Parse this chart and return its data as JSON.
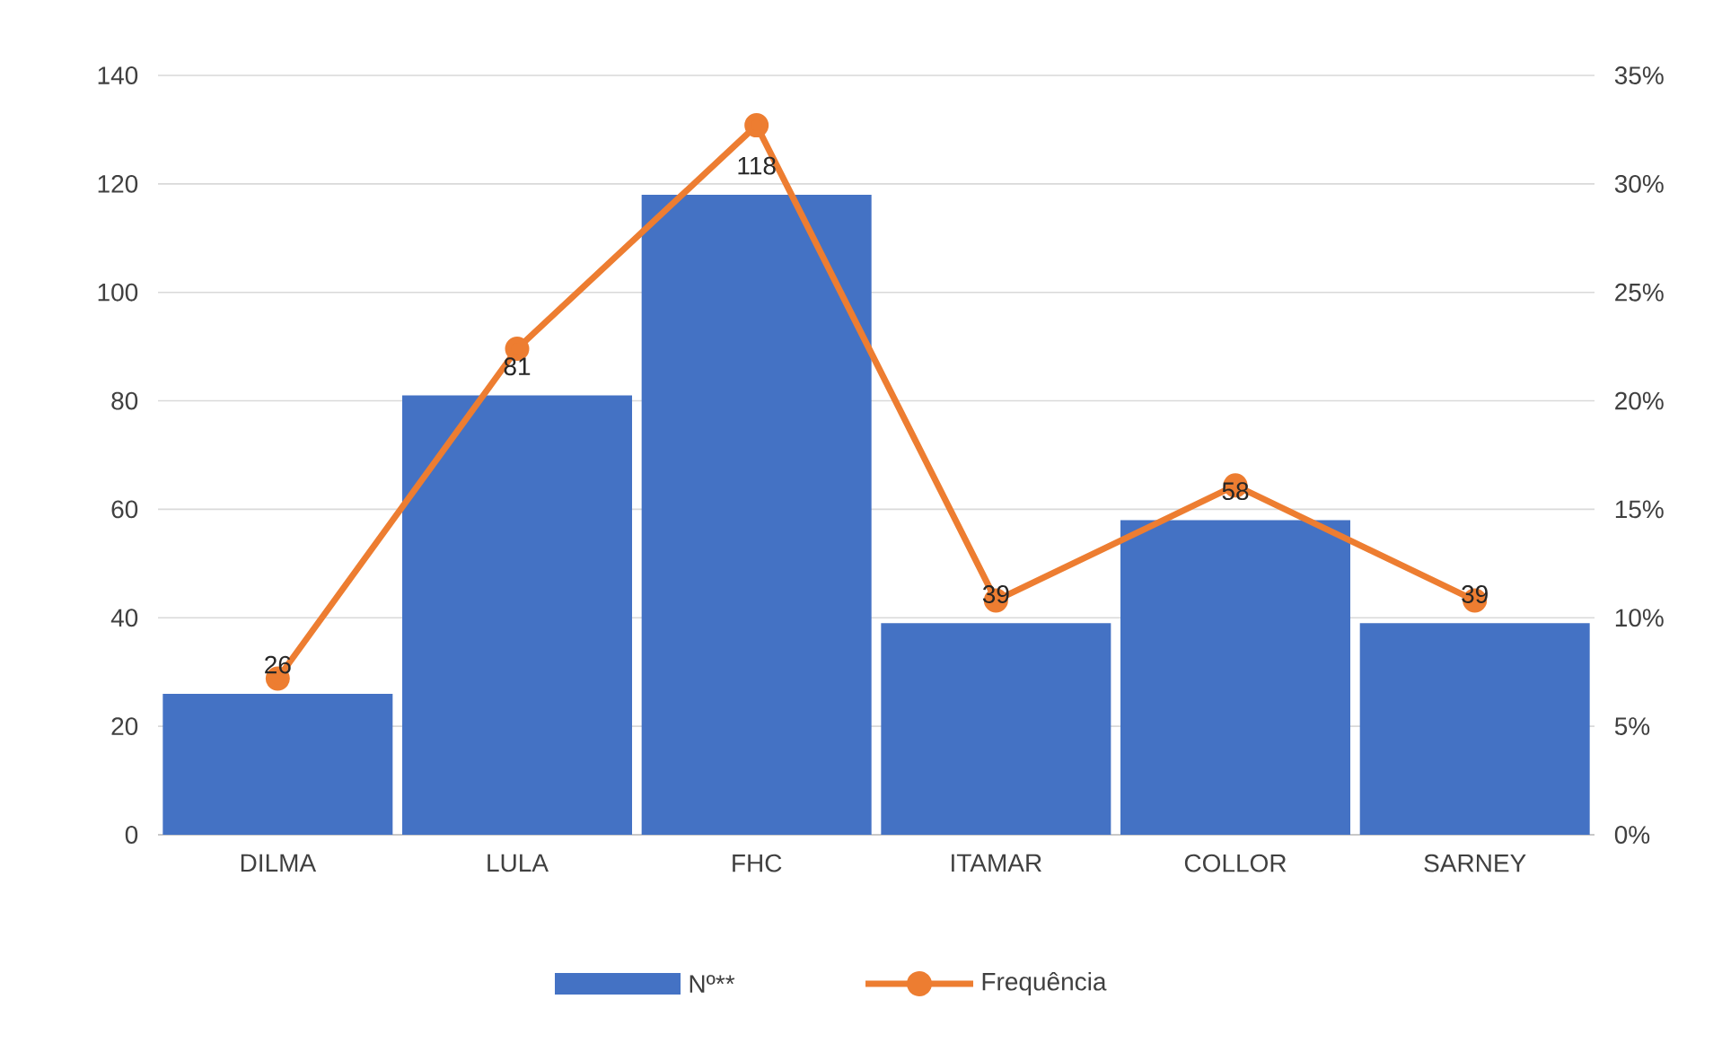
{
  "chart_data": {
    "type": "bar",
    "categories": [
      "DILMA",
      "LULA",
      "FHC",
      "ITAMAR",
      "COLLOR",
      "SARNEY"
    ],
    "series": [
      {
        "name": "Nº**",
        "color": "#4472c4",
        "values": [
          26,
          81,
          118,
          39,
          58,
          39
        ],
        "value_labels": [
          "26",
          "81",
          "118",
          "39",
          "58",
          "39"
        ]
      },
      {
        "name": "Frequência",
        "type": "line",
        "axis": "y2",
        "color": "#ed7d31",
        "marker": "circle",
        "values": [
          7.2,
          22.4,
          32.7,
          10.8,
          16.1,
          10.8
        ]
      }
    ],
    "ylim": [
      0,
      140
    ],
    "yticks": [
      0,
      20,
      40,
      60,
      80,
      100,
      120,
      140
    ],
    "y2lim": [
      0,
      35
    ],
    "y2ticks": [
      {
        "value": 0,
        "label": "0%"
      },
      {
        "value": 5,
        "label": "5%"
      },
      {
        "value": 10,
        "label": "10%"
      },
      {
        "value": 15,
        "label": "15%"
      },
      {
        "value": 20,
        "label": "20%"
      },
      {
        "value": 25,
        "label": "25%"
      },
      {
        "value": 30,
        "label": "30%"
      },
      {
        "value": 35,
        "label": "35%"
      }
    ],
    "grid": "y",
    "legend": "bottom"
  }
}
